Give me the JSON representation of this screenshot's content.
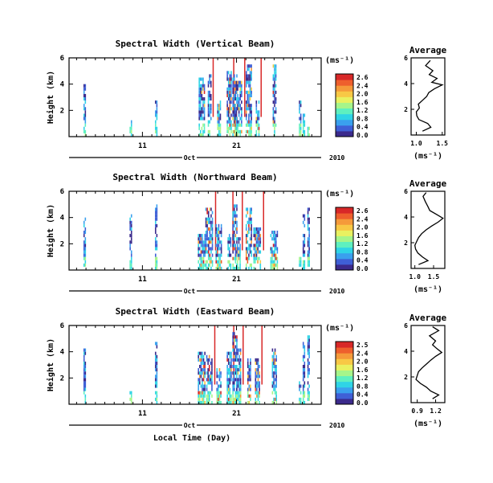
{
  "figure": {
    "xlabel": "Local Time (Day)",
    "month_label": "Oct",
    "year_label": "2010",
    "cbar_unit": "(ms⁻¹)",
    "avg_title": "Average",
    "avg_xlabel": "(ms⁻¹)"
  },
  "colors": {
    "scale": [
      "#3b2a8c",
      "#3f5fd6",
      "#3aa0ee",
      "#2fd4e6",
      "#5ef0c0",
      "#a6f58a",
      "#e9f160",
      "#f8c845",
      "#f59a3a",
      "#ee5f2d",
      "#d82828"
    ],
    "line": "#000000"
  },
  "chart_data": [
    {
      "type": "heatmap",
      "title": "Spectral Width (Vertical Beam)",
      "ylabel": "Height (km)",
      "y_ticks": [
        2,
        4,
        6
      ],
      "ylim": [
        0,
        6
      ],
      "x_ticks": [
        "11",
        "21"
      ],
      "cbar_ticks": [
        "2.6",
        "2.4",
        "2.0",
        "1.6",
        "1.2",
        "0.8",
        "0.4",
        "0.0"
      ],
      "active_days": [
        4.9,
        9.8,
        12.5,
        17.4,
        18.2,
        19.2,
        20.3,
        20.9,
        21.3,
        22.4,
        23.3,
        25.1,
        27.8,
        28.2,
        28.7
      ],
      "average": {
        "title": "Average",
        "xlabel": "(ms⁻¹)",
        "x_ticks": [
          "1.0",
          "1.5"
        ],
        "xlim": [
          0.9,
          1.55
        ],
        "y_ticks": [
          2,
          4,
          6
        ],
        "profile": [
          {
            "height": 0.3,
            "value": 1.12
          },
          {
            "height": 0.6,
            "value": 1.28
          },
          {
            "height": 0.9,
            "value": 1.22
          },
          {
            "height": 1.2,
            "value": 1.05
          },
          {
            "height": 1.5,
            "value": 1.01
          },
          {
            "height": 1.8,
            "value": 1.0
          },
          {
            "height": 2.1,
            "value": 1.06
          },
          {
            "height": 2.4,
            "value": 1.04
          },
          {
            "height": 2.7,
            "value": 1.12
          },
          {
            "height": 3.0,
            "value": 1.2
          },
          {
            "height": 3.3,
            "value": 1.24
          },
          {
            "height": 3.6,
            "value": 1.35
          },
          {
            "height": 3.9,
            "value": 1.5
          },
          {
            "height": 4.1,
            "value": 1.3
          },
          {
            "height": 4.4,
            "value": 1.4
          },
          {
            "height": 4.7,
            "value": 1.25
          },
          {
            "height": 5.0,
            "value": 1.32
          },
          {
            "height": 5.4,
            "value": 1.18
          },
          {
            "height": 5.8,
            "value": 1.27
          }
        ]
      }
    },
    {
      "type": "heatmap",
      "title": "Spectral Width (Northward Beam)",
      "ylabel": "Height (km)",
      "y_ticks": [
        2,
        4,
        6
      ],
      "ylim": [
        0,
        6
      ],
      "x_ticks": [
        "11",
        "21"
      ],
      "cbar_ticks": [
        "2.6",
        "2.4",
        "2.0",
        "1.6",
        "1.2",
        "0.8",
        "0.4",
        "0.0"
      ],
      "active_days": [
        4.9,
        9.8,
        12.5,
        17.4,
        18.2,
        19.2,
        20.3,
        20.9,
        21.3,
        22.4,
        23.3,
        25.1,
        27.8,
        28.2,
        28.7
      ],
      "average": {
        "title": "Average",
        "xlabel": "(ms⁻¹)",
        "x_ticks": [
          "1.0",
          "1.5"
        ],
        "xlim": [
          0.9,
          1.8
        ],
        "y_ticks": [
          2,
          4,
          6
        ],
        "profile": [
          {
            "height": 0.3,
            "value": 1.1
          },
          {
            "height": 0.6,
            "value": 1.35
          },
          {
            "height": 0.9,
            "value": 1.2
          },
          {
            "height": 1.2,
            "value": 1.08
          },
          {
            "height": 1.5,
            "value": 1.02
          },
          {
            "height": 1.8,
            "value": 1.0
          },
          {
            "height": 2.1,
            "value": 1.05
          },
          {
            "height": 2.4,
            "value": 1.1
          },
          {
            "height": 2.7,
            "value": 1.18
          },
          {
            "height": 3.0,
            "value": 1.3
          },
          {
            "height": 3.3,
            "value": 1.45
          },
          {
            "height": 3.6,
            "value": 1.62
          },
          {
            "height": 3.9,
            "value": 1.75
          },
          {
            "height": 4.2,
            "value": 1.58
          },
          {
            "height": 4.5,
            "value": 1.4
          },
          {
            "height": 4.8,
            "value": 1.35
          },
          {
            "height": 5.2,
            "value": 1.28
          },
          {
            "height": 5.6,
            "value": 1.22
          },
          {
            "height": 5.9,
            "value": 1.3
          }
        ]
      }
    },
    {
      "type": "heatmap",
      "title": "Spectral Width (Eastward Beam)",
      "ylabel": "Height (km)",
      "y_ticks": [
        2,
        4,
        6
      ],
      "ylim": [
        0,
        6
      ],
      "x_ticks": [
        "11",
        "21"
      ],
      "cbar_ticks": [
        "2.5",
        "2.4",
        "2.0",
        "1.6",
        "1.2",
        "0.8",
        "0.4",
        "0.0"
      ],
      "active_days": [
        4.9,
        9.8,
        12.5,
        17.4,
        18.2,
        19.2,
        20.3,
        20.9,
        21.3,
        22.4,
        23.3,
        25.1,
        27.8,
        28.2,
        28.7
      ],
      "average": {
        "title": "Average",
        "xlabel": "(ms⁻¹)",
        "x_ticks": [
          "0.9",
          "1.2"
        ],
        "xlim": [
          0.8,
          1.35
        ],
        "y_ticks": [
          2,
          4,
          6
        ],
        "profile": [
          {
            "height": 0.3,
            "value": 1.15
          },
          {
            "height": 0.6,
            "value": 1.25
          },
          {
            "height": 0.9,
            "value": 1.12
          },
          {
            "height": 1.2,
            "value": 1.05
          },
          {
            "height": 1.5,
            "value": 0.95
          },
          {
            "height": 1.8,
            "value": 0.88
          },
          {
            "height": 2.1,
            "value": 0.9
          },
          {
            "height": 2.4,
            "value": 0.92
          },
          {
            "height": 2.7,
            "value": 0.98
          },
          {
            "height": 3.0,
            "value": 1.05
          },
          {
            "height": 3.3,
            "value": 1.12
          },
          {
            "height": 3.6,
            "value": 1.2
          },
          {
            "height": 3.9,
            "value": 1.3
          },
          {
            "height": 4.2,
            "value": 1.22
          },
          {
            "height": 4.5,
            "value": 1.15
          },
          {
            "height": 4.8,
            "value": 1.2
          },
          {
            "height": 5.2,
            "value": 1.1
          },
          {
            "height": 5.6,
            "value": 1.25
          },
          {
            "height": 5.9,
            "value": 1.15
          }
        ]
      }
    }
  ]
}
